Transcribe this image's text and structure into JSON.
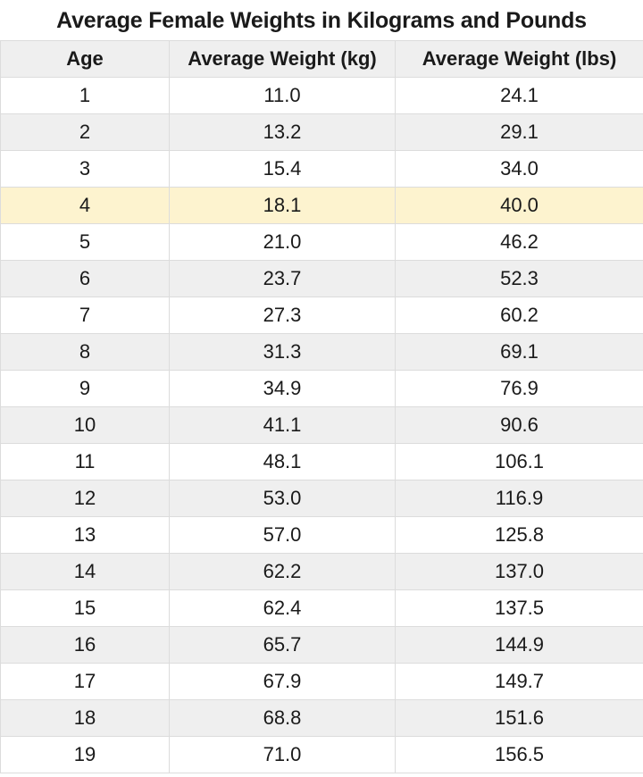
{
  "title": "Average Female Weights in Kilograms and Pounds",
  "headers": [
    "Age",
    "Average Weight (kg)",
    "Average Weight (lbs)"
  ],
  "highlight_color": "#fdf3cf",
  "highlighted_age": "4",
  "rows": [
    [
      "1",
      "11.0",
      "24.1"
    ],
    [
      "2",
      "13.2",
      "29.1"
    ],
    [
      "3",
      "15.4",
      "34.0"
    ],
    [
      "4",
      "18.1",
      "40.0"
    ],
    [
      "5",
      "21.0",
      "46.2"
    ],
    [
      "6",
      "23.7",
      "52.3"
    ],
    [
      "7",
      "27.3",
      "60.2"
    ],
    [
      "8",
      "31.3",
      "69.1"
    ],
    [
      "9",
      "34.9",
      "76.9"
    ],
    [
      "10",
      "41.1",
      "90.6"
    ],
    [
      "11",
      "48.1",
      "106.1"
    ],
    [
      "12",
      "53.0",
      "116.9"
    ],
    [
      "13",
      "57.0",
      "125.8"
    ],
    [
      "14",
      "62.2",
      "137.0"
    ],
    [
      "15",
      "62.4",
      "137.5"
    ],
    [
      "16",
      "65.7",
      "144.9"
    ],
    [
      "17",
      "67.9",
      "149.7"
    ],
    [
      "18",
      "68.8",
      "151.6"
    ],
    [
      "19",
      "71.0",
      "156.5"
    ]
  ]
}
